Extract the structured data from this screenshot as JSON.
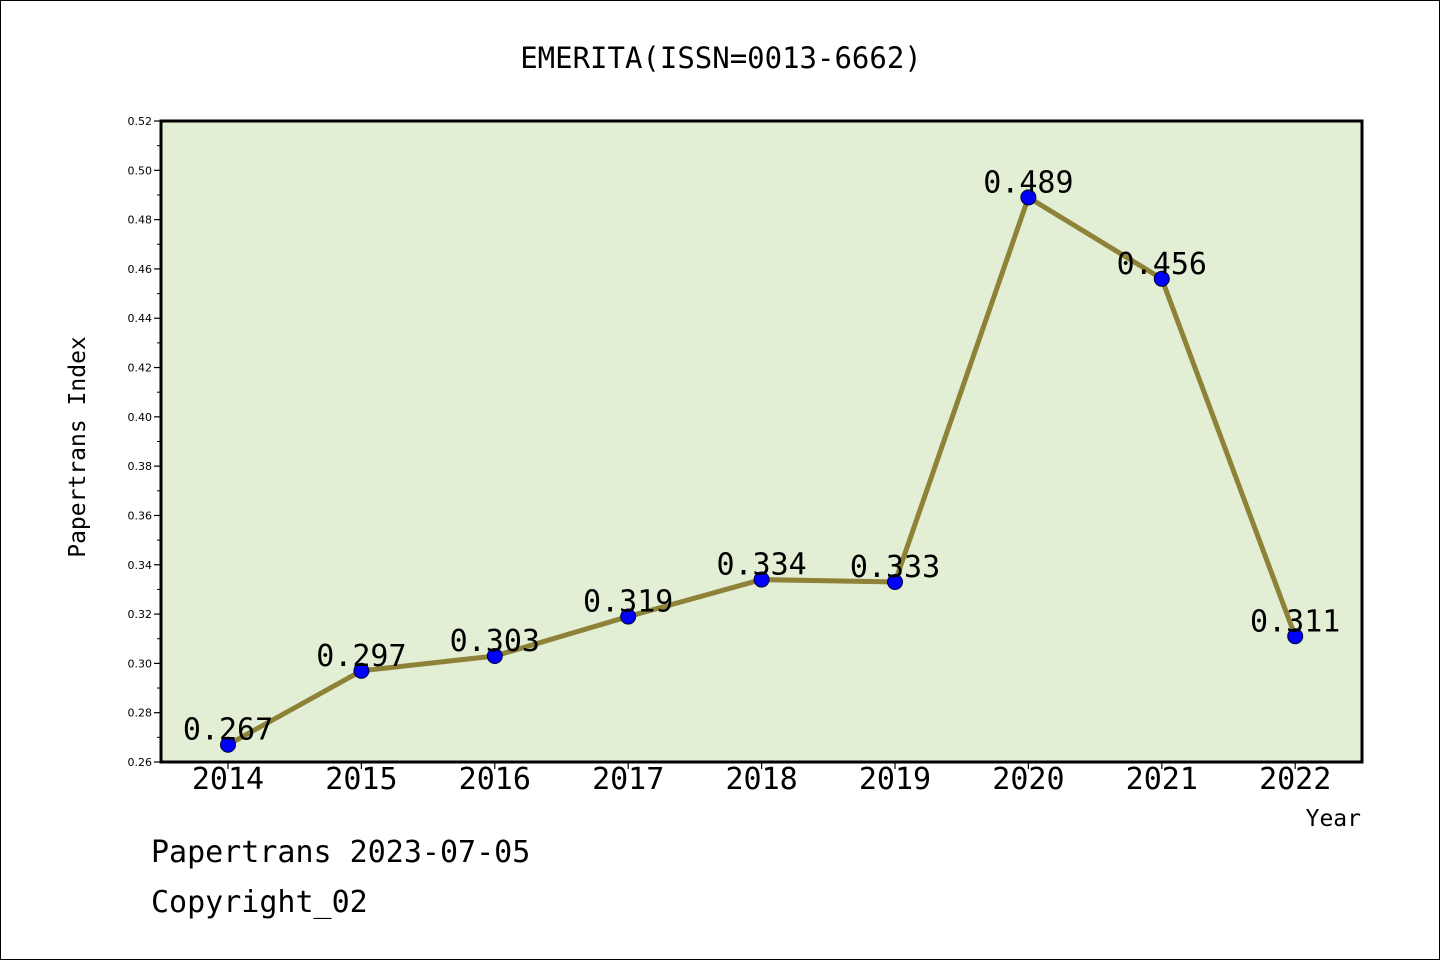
{
  "chart_data": {
    "type": "line",
    "title": "EMERITA(ISSN=0013-6662)",
    "xlabel": "Year",
    "ylabel": "Papertrans Index",
    "categories": [
      "2014",
      "2015",
      "2016",
      "2017",
      "2018",
      "2019",
      "2020",
      "2021",
      "2022"
    ],
    "series": [
      {
        "values": [
          0.267,
          0.297,
          0.303,
          0.319,
          0.334,
          0.333,
          0.489,
          0.456,
          0.311
        ],
        "data_labels": [
          "0.267",
          "0.297",
          "0.303",
          "0.319",
          "0.334",
          "0.333",
          "0.489",
          "0.456",
          "0.311"
        ]
      }
    ],
    "ylim": [
      0.26,
      0.52
    ],
    "yticks": [
      "0.26",
      "0.28",
      "0.30",
      "0.32",
      "0.34",
      "0.36",
      "0.38",
      "0.40",
      "0.42",
      "0.44",
      "0.46",
      "0.48",
      "0.50",
      "0.52"
    ],
    "grid": false,
    "legend": "none",
    "colors": {
      "plot_background": "#e2efd4",
      "line": "#8e8138",
      "marker": "#0000ff",
      "axis": "#000000"
    }
  },
  "footer": {
    "date_text": "Papertrans 2023-07-05",
    "copyright_text": "Copyright_02"
  }
}
